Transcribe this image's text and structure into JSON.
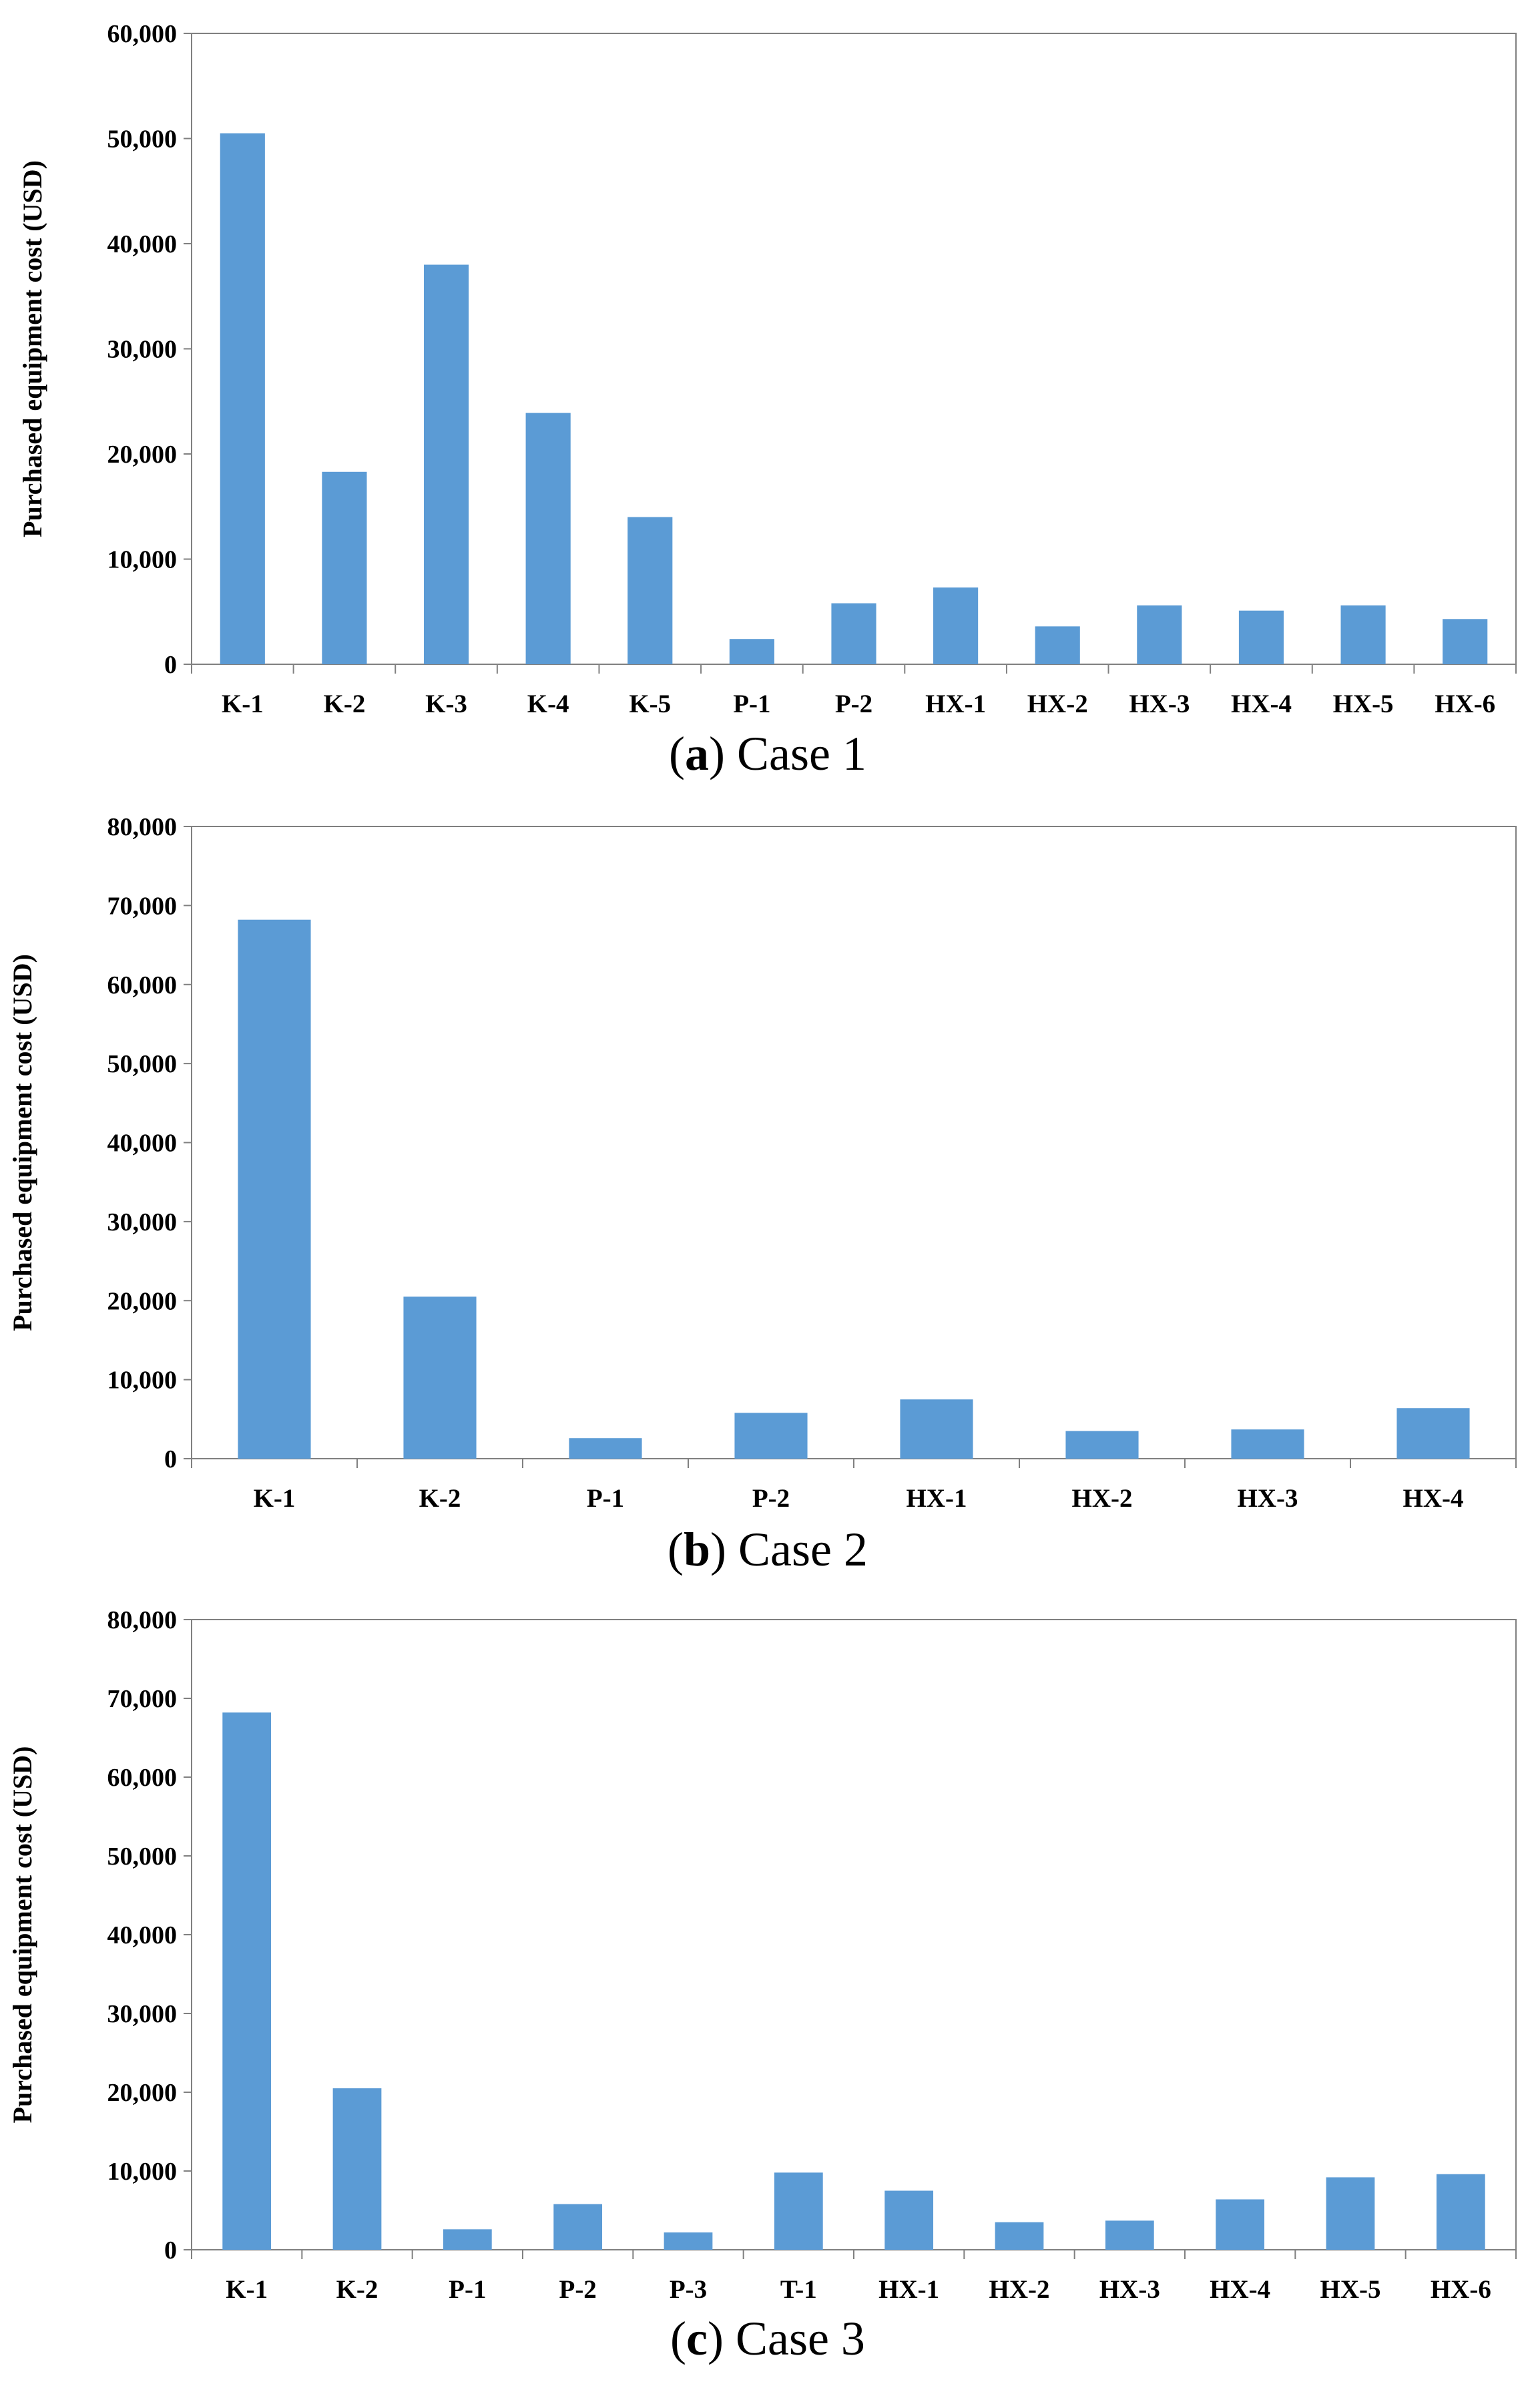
{
  "bar_color": "#5b9bd5",
  "axis_color": "#808080",
  "chart_data": [
    {
      "type": "bar",
      "ylabel": "Purchased equipment cost (USD)",
      "ylim": [
        0,
        60000
      ],
      "yticks": [
        "0",
        "10,000",
        "20,000",
        "30,000",
        "40,000",
        "50,000",
        "60,000"
      ],
      "ytick_values": [
        0,
        10000,
        20000,
        30000,
        40000,
        50000,
        60000
      ],
      "categories": [
        "K-1",
        "K-2",
        "K-3",
        "K-4",
        "K-5",
        "P-1",
        "P-2",
        "HX-1",
        "HX-2",
        "HX-3",
        "HX-4",
        "HX-5",
        "HX-6"
      ],
      "values": [
        50500,
        18300,
        38000,
        23900,
        14000,
        2400,
        5800,
        7300,
        3600,
        5600,
        5100,
        5600,
        4300
      ],
      "grid": false,
      "caption": {
        "open": "(",
        "letter": "a",
        "rest": ") Case 1"
      }
    },
    {
      "type": "bar",
      "ylabel": "Purchased equipment cost (USD)",
      "ylim": [
        0,
        80000
      ],
      "yticks": [
        "0",
        "10,000",
        "20,000",
        "30,000",
        "40,000",
        "50,000",
        "60,000",
        "70,000",
        "80,000"
      ],
      "ytick_values": [
        0,
        10000,
        20000,
        30000,
        40000,
        50000,
        60000,
        70000,
        80000
      ],
      "categories": [
        "K-1",
        "K-2",
        "P-1",
        "P-2",
        "HX-1",
        "HX-2",
        "HX-3",
        "HX-4"
      ],
      "values": [
        68200,
        20500,
        2600,
        5800,
        7500,
        3500,
        3700,
        6400
      ],
      "grid": false,
      "caption": {
        "open": "(",
        "letter": "b",
        "rest": ") Case 2"
      }
    },
    {
      "type": "bar",
      "ylabel": "Purchased equipment cost (USD)",
      "ylim": [
        0,
        80000
      ],
      "yticks": [
        "0",
        "10,000",
        "20,000",
        "30,000",
        "40,000",
        "50,000",
        "60,000",
        "70,000",
        "80,000"
      ],
      "ytick_values": [
        0,
        10000,
        20000,
        30000,
        40000,
        50000,
        60000,
        70000,
        80000
      ],
      "categories": [
        "K-1",
        "K-2",
        "P-1",
        "P-2",
        "P-3",
        "T-1",
        "HX-1",
        "HX-2",
        "HX-3",
        "HX-4",
        "HX-5",
        "HX-6"
      ],
      "values": [
        68200,
        20500,
        2600,
        5800,
        2200,
        9800,
        7500,
        3500,
        3700,
        6400,
        9200,
        9600
      ],
      "grid": false,
      "caption": {
        "open": "(",
        "letter": "c",
        "rest": ") Case 3"
      }
    }
  ]
}
